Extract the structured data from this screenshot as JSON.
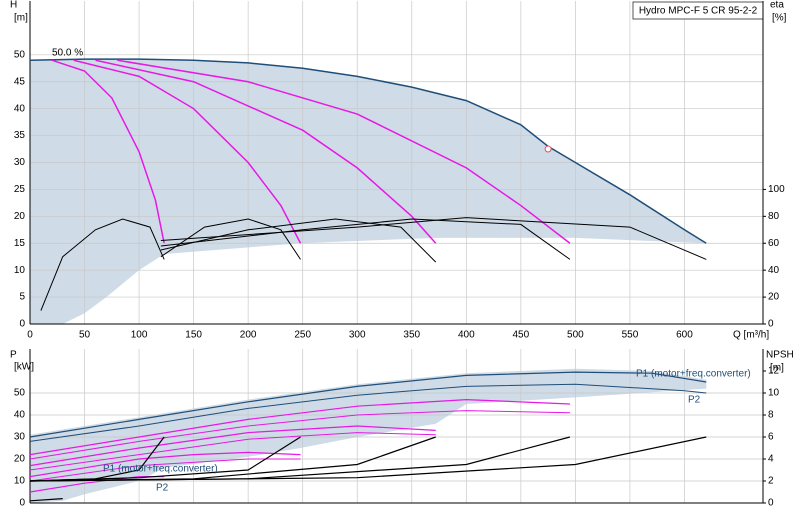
{
  "chart_data": [
    {
      "type": "line",
      "title": "Hydro MPC-F 5 CR 95-2-2",
      "y_label": "H",
      "y_unit": "[m]",
      "y2_label": "eta",
      "y2_unit": "[%]",
      "x_label": "Q [m³/h]",
      "annotations": [
        "50.0 %"
      ],
      "xlim": [
        0,
        672
      ],
      "xticks": [
        0,
        50,
        100,
        150,
        200,
        250,
        300,
        350,
        400,
        450,
        500,
        550,
        600
      ],
      "ylim": [
        0,
        60
      ],
      "yticks": [
        0,
        5,
        10,
        15,
        20,
        25,
        30,
        35,
        40,
        45,
        50
      ],
      "y2lim": [
        0,
        240
      ],
      "y2ticks": [
        0,
        20,
        40,
        60,
        80,
        100
      ],
      "grid": true,
      "area": {
        "color": "#cfdbe6",
        "x": [
          0,
          50,
          100,
          150,
          200,
          250,
          300,
          350,
          400,
          450,
          475,
          500,
          550,
          600,
          620,
          620,
          500,
          372,
          248,
          123,
          100,
          70,
          50,
          30,
          0
        ],
        "values": [
          49,
          49.2,
          49.2,
          49,
          48.5,
          47.5,
          46,
          44,
          41.5,
          37,
          33,
          30,
          24,
          17.5,
          15,
          15,
          16,
          16,
          15,
          13,
          10,
          5,
          2,
          0,
          0
        ]
      },
      "duty_point": {
        "x": 475,
        "y": 32.5,
        "color": "#e05060"
      },
      "series": [
        {
          "color": "#1f4e79",
          "width": 1.5,
          "x": [
            0,
            50,
            100,
            150,
            200,
            250,
            300,
            350,
            400,
            450,
            475,
            500,
            550,
            600,
            620
          ],
          "values": [
            49,
            49.2,
            49.2,
            49,
            48.5,
            47.5,
            46,
            44,
            41.5,
            37,
            33,
            30,
            24,
            17.5,
            15
          ]
        },
        {
          "color": "#e619e6",
          "width": 1.5,
          "x": [
            20,
            50,
            75,
            100,
            115,
            123
          ],
          "values": [
            49,
            47,
            42,
            32,
            23,
            15
          ]
        },
        {
          "color": "#e619e6",
          "width": 1.5,
          "x": [
            40,
            100,
            150,
            200,
            230,
            248
          ],
          "values": [
            49,
            46,
            40,
            30,
            22,
            15
          ]
        },
        {
          "color": "#e619e6",
          "width": 1.5,
          "x": [
            60,
            150,
            250,
            300,
            350,
            372
          ],
          "values": [
            49,
            45,
            36,
            29,
            20,
            15
          ]
        },
        {
          "color": "#e619e6",
          "width": 1.5,
          "x": [
            80,
            200,
            300,
            400,
            450,
            495
          ],
          "values": [
            49,
            45,
            39,
            29,
            22,
            15
          ]
        },
        {
          "color": "#000000",
          "width": 1,
          "axis": "y2",
          "x": [
            10,
            30,
            60,
            85,
            110,
            123
          ],
          "values": [
            10,
            50,
            70,
            78,
            72,
            48
          ]
        },
        {
          "color": "#000000",
          "width": 1,
          "axis": "y2",
          "x": [
            120,
            160,
            200,
            230,
            248
          ],
          "values": [
            50,
            72,
            78,
            70,
            48
          ]
        },
        {
          "color": "#000000",
          "width": 1,
          "axis": "y2",
          "x": [
            120,
            200,
            280,
            340,
            372
          ],
          "values": [
            55,
            70,
            78,
            72,
            46
          ]
        },
        {
          "color": "#000000",
          "width": 1,
          "axis": "y2",
          "x": [
            120,
            250,
            350,
            450,
            495
          ],
          "values": [
            58,
            70,
            78,
            74,
            48
          ]
        },
        {
          "color": "#000000",
          "width": 1,
          "axis": "y2",
          "x": [
            120,
            300,
            400,
            550,
            620
          ],
          "values": [
            62,
            72,
            79,
            72,
            48
          ]
        }
      ]
    },
    {
      "type": "line",
      "y_label": "P",
      "y_unit": "[kW]",
      "y2_label": "NPSH",
      "y2_unit": "[m]",
      "annotations": [
        "P1 (motor+freq.converter)",
        "P2",
        "P1 (motor+freq.converter)",
        "P2"
      ],
      "xlim": [
        0,
        672
      ],
      "xticks": [
        0,
        50,
        100,
        150,
        200,
        250,
        300,
        350,
        400,
        450,
        500,
        550,
        600
      ],
      "xtick_labels": false,
      "ylim": [
        0,
        70
      ],
      "yticks": [
        0,
        10,
        20,
        30,
        40,
        50
      ],
      "y2lim": [
        0,
        14
      ],
      "y2ticks": [
        0,
        2,
        4,
        6,
        8,
        10,
        12
      ],
      "grid": true,
      "area": {
        "color": "#cfdbe6",
        "x": [
          0,
          100,
          200,
          300,
          400,
          500,
          570,
          620,
          620,
          500,
          400,
          372,
          300,
          248,
          200,
          123,
          100,
          50,
          30,
          0
        ],
        "values": [
          31,
          39,
          47,
          54,
          59,
          61,
          60,
          56,
          52,
          48,
          45,
          36,
          30,
          25,
          21,
          16,
          10,
          4,
          1,
          0
        ]
      },
      "series": [
        {
          "color": "#1f4e79",
          "width": 1.2,
          "x": [
            0,
            100,
            200,
            300,
            400,
            500,
            570,
            620
          ],
          "values": [
            30,
            38,
            46,
            53,
            58,
            59.5,
            59,
            55
          ]
        },
        {
          "color": "#1f4e79",
          "width": 1,
          "x": [
            0,
            100,
            200,
            300,
            400,
            500,
            600,
            620
          ],
          "values": [
            28,
            35,
            43,
            49,
            53,
            54,
            51,
            50
          ]
        },
        {
          "color": "#e619e6",
          "width": 1.2,
          "x": [
            0,
            50,
            100,
            123
          ],
          "values": [
            5,
            9,
            12,
            12
          ]
        },
        {
          "color": "#e619e6",
          "width": 1.2,
          "x": [
            0,
            50,
            100,
            150,
            200,
            248
          ],
          "values": [
            12,
            16,
            20,
            22,
            23,
            22
          ]
        },
        {
          "color": "#e619e6",
          "width": 1,
          "x": [
            0,
            100,
            200,
            248
          ],
          "values": [
            10,
            17,
            20,
            20
          ]
        },
        {
          "color": "#e619e6",
          "width": 1.2,
          "x": [
            0,
            100,
            200,
            300,
            372
          ],
          "values": [
            17,
            25,
            32,
            35,
            33
          ]
        },
        {
          "color": "#e619e6",
          "width": 1,
          "x": [
            0,
            100,
            200,
            300,
            372
          ],
          "values": [
            15,
            22,
            29,
            32,
            31
          ]
        },
        {
          "color": "#e619e6",
          "width": 1.2,
          "x": [
            0,
            100,
            200,
            300,
            400,
            495
          ],
          "values": [
            22,
            30,
            38,
            44,
            47,
            45
          ]
        },
        {
          "color": "#e619e6",
          "width": 1,
          "x": [
            0,
            100,
            200,
            300,
            400,
            495
          ],
          "values": [
            20,
            28,
            35,
            40,
            42,
            41
          ]
        },
        {
          "color": "#000000",
          "width": 1.2,
          "axis": "y2",
          "x": [
            0,
            30
          ],
          "values": [
            0.2,
            0.4
          ]
        },
        {
          "color": "#000000",
          "width": 1.2,
          "axis": "y2",
          "x": [
            0,
            60,
            100,
            123
          ],
          "values": [
            2,
            2.2,
            3,
            6
          ]
        },
        {
          "color": "#000000",
          "width": 1.2,
          "axis": "y2",
          "x": [
            0,
            100,
            200,
            248
          ],
          "values": [
            2,
            2.3,
            3,
            6
          ]
        },
        {
          "color": "#000000",
          "width": 1.2,
          "axis": "y2",
          "x": [
            0,
            150,
            300,
            372
          ],
          "values": [
            2,
            2.2,
            3.5,
            6
          ]
        },
        {
          "color": "#000000",
          "width": 1.2,
          "axis": "y2",
          "x": [
            0,
            200,
            400,
            495
          ],
          "values": [
            2,
            2.2,
            3.5,
            6
          ]
        },
        {
          "color": "#000000",
          "width": 1.2,
          "axis": "y2",
          "x": [
            0,
            300,
            500,
            620
          ],
          "values": [
            2,
            2.3,
            3.5,
            6
          ]
        }
      ]
    }
  ]
}
